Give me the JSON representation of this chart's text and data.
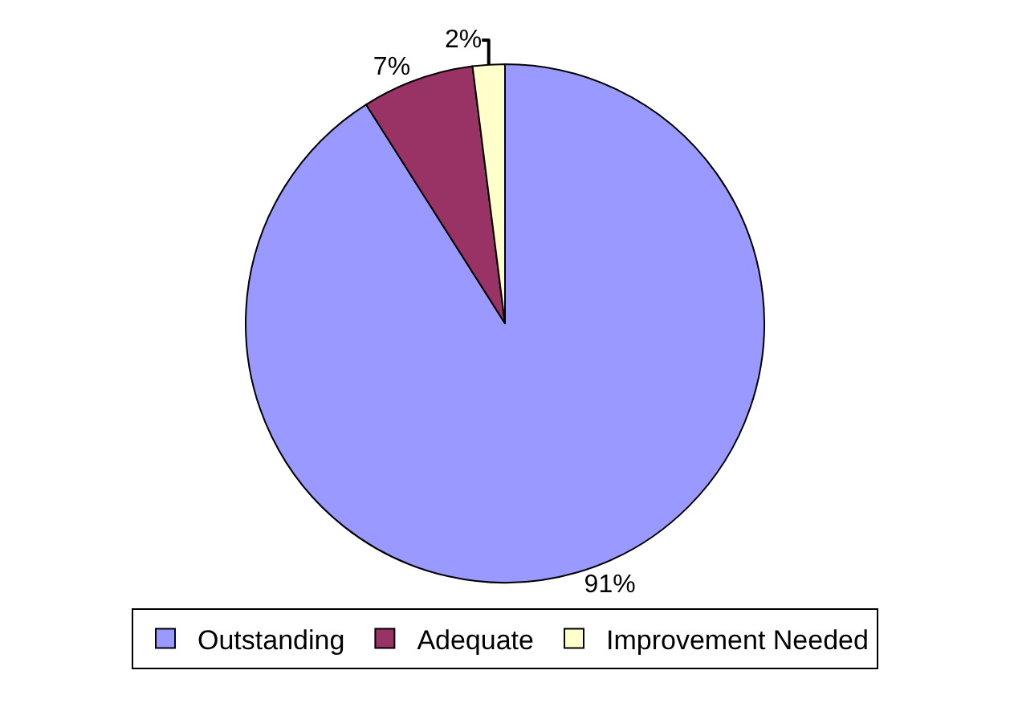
{
  "chart_data": {
    "type": "pie",
    "categories": [
      "Outstanding",
      "Adequate",
      "Improvement Needed"
    ],
    "values": [
      91,
      7,
      2
    ],
    "colors": [
      "#9999ff",
      "#993366",
      "#ffffcc"
    ],
    "value_labels": [
      "91%",
      "7%",
      "2%"
    ],
    "legend": "bottom"
  }
}
